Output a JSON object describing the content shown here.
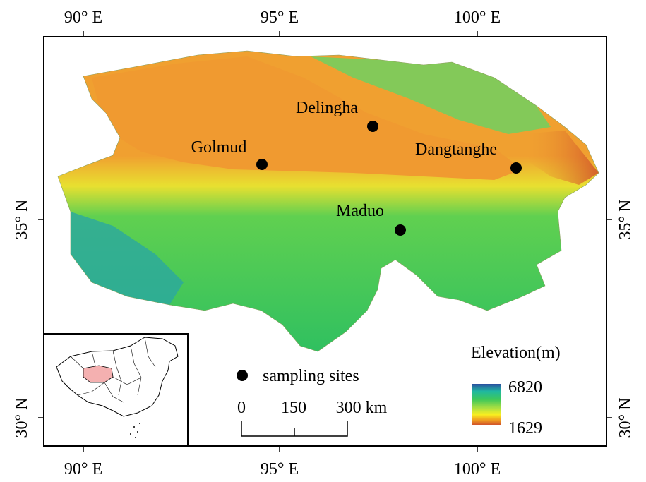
{
  "map": {
    "top_ticks": [
      "90° E",
      "95° E",
      "100° E"
    ],
    "bottom_ticks": [
      "90° E",
      "95° E",
      "100° E"
    ],
    "left_ticks": [
      "35° N",
      "30° N"
    ],
    "right_ticks": [
      "35° N",
      "30° N"
    ],
    "sites": [
      {
        "name": "Delingha"
      },
      {
        "name": "Golmud"
      },
      {
        "name": "Dangtanghe"
      },
      {
        "name": "Maduo"
      }
    ]
  },
  "legend": {
    "points_label": "sampling sites",
    "elevation_title": "Elevation(m)",
    "elevation_max": "6820",
    "elevation_min": "1629",
    "colors": [
      "#2b4fa0",
      "#1fb8a0",
      "#3ec85a",
      "#b0e040",
      "#f8f020",
      "#f0a020",
      "#d2552a"
    ]
  },
  "scalebar": {
    "labels": [
      "0",
      "150",
      "300 km"
    ]
  }
}
